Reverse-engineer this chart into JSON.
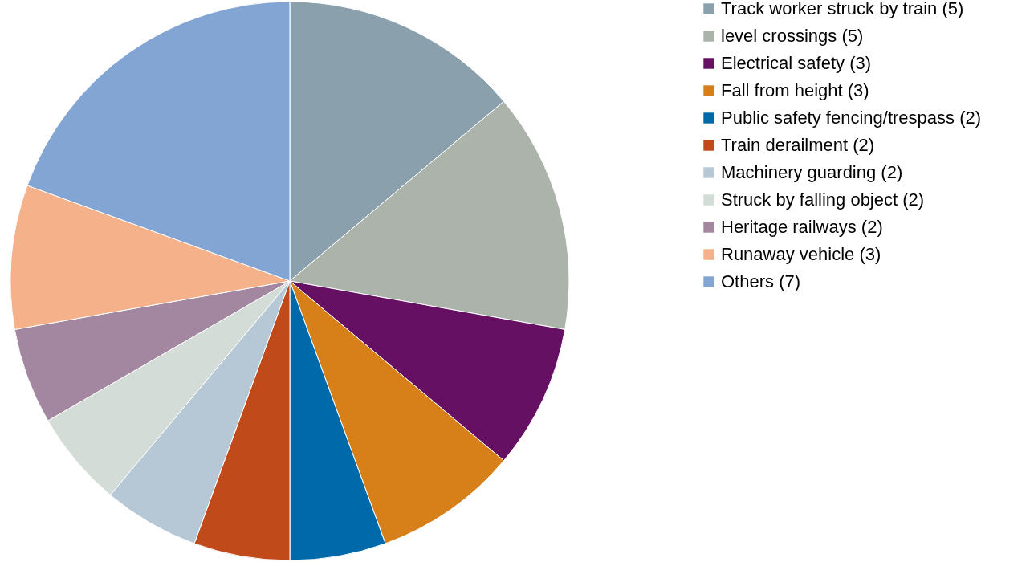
{
  "chart_data": {
    "type": "pie",
    "categories": [
      "Track worker struck by train (5)",
      "level crossings (5)",
      "Electrical safety (3)",
      "Fall from height (3)",
      "Public safety fencing/trespass (2)",
      "Train derailment (2)",
      "Machinery guarding (2)",
      "Struck by falling object (2)",
      "Heritage railways (2)",
      "Runaway vehicle (3)",
      "Others (7)"
    ],
    "values": [
      5,
      5,
      3,
      3,
      2,
      2,
      2,
      2,
      2,
      3,
      7
    ],
    "colors": [
      "#8aa0ac",
      "#abb3ab",
      "#651062",
      "#d7801a",
      "#0069aa",
      "#c04a1a",
      "#b6c8d5",
      "#d3dcd6",
      "#a3869f",
      "#f5b189",
      "#83a5d3"
    ],
    "legend": "right"
  }
}
